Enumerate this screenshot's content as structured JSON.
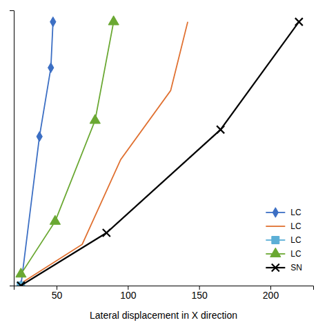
{
  "chart_data": {
    "type": "line",
    "xlabel": "Lateral displacement in X direction",
    "xlim": [
      20,
      230
    ],
    "ylim": [
      0,
      12
    ],
    "xticks": [
      50,
      100,
      150,
      200
    ],
    "tick_labels": "x",
    "legend": "lower right",
    "series": [
      {
        "name": "LC",
        "color": "#3c6fc4",
        "marker": "diamond",
        "x": [
          25,
          38,
          46,
          47.5
        ],
        "values": [
          0.0,
          6.5,
          9.5,
          11.5
        ]
      },
      {
        "name": "LC",
        "color": "#e07030",
        "marker": "none",
        "x": [
          25,
          68,
          95,
          130,
          142
        ],
        "values": [
          0.1,
          1.8,
          5.5,
          8.5,
          11.5
        ]
      },
      {
        "name": "LC",
        "color": "#5bafd6",
        "marker": "square",
        "x": [
          25
        ],
        "values": [
          0.0
        ]
      },
      {
        "name": "LC",
        "color": "#6aa832",
        "marker": "triangle",
        "x": [
          25,
          49,
          77,
          90
        ],
        "values": [
          0.5,
          2.8,
          7.2,
          11.5
        ]
      },
      {
        "name": "SN",
        "color": "#000000",
        "marker": "x",
        "x": [
          25,
          85,
          165,
          220
        ],
        "values": [
          0.0,
          2.3,
          6.8,
          11.5
        ]
      }
    ]
  }
}
